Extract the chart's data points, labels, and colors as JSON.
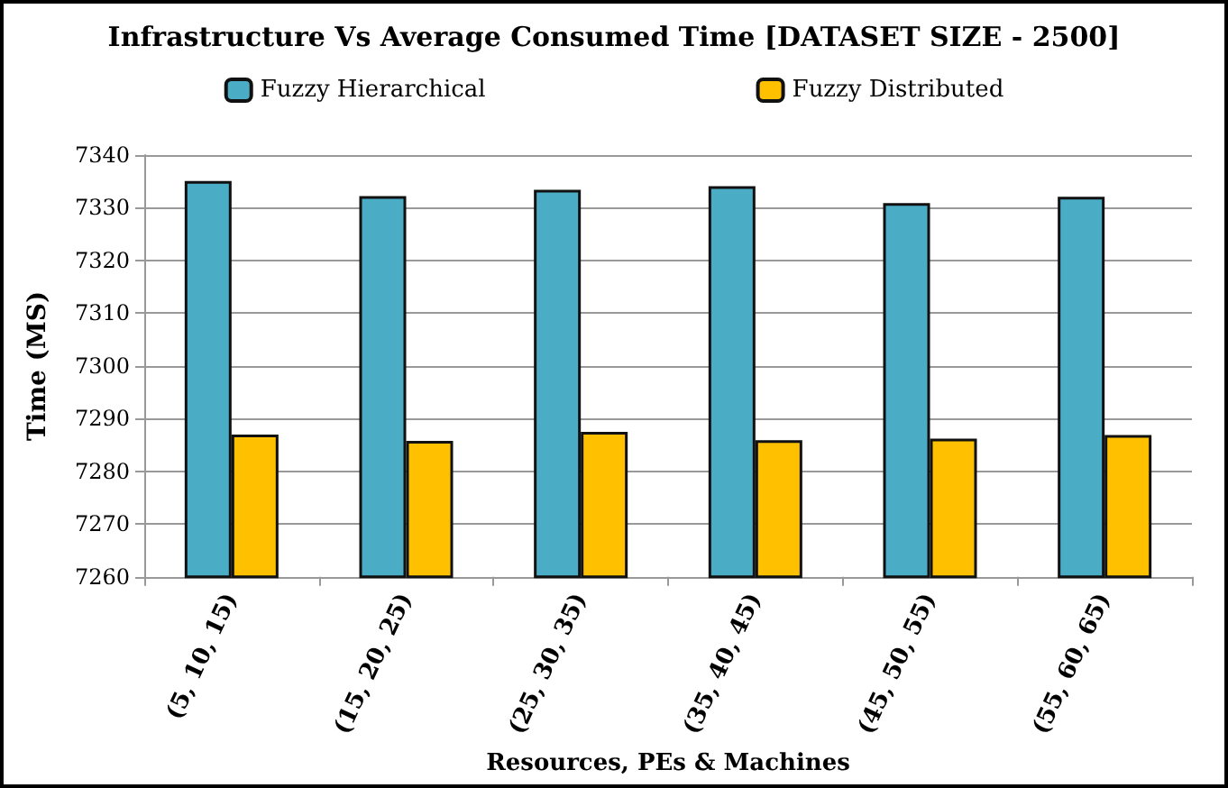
{
  "chart_data": {
    "type": "bar",
    "title": "Infrastructure Vs Average Consumed Time [DATASET SIZE - 2500]",
    "xlabel": "Resources, PEs & Machines",
    "ylabel": "Time (MS)",
    "categories": [
      "(5, 10, 15)",
      "(15, 20, 25)",
      "(25, 30, 35)",
      "(35, 40, 45)",
      "(45, 50, 55)",
      "(55, 60, 65)"
    ],
    "series": [
      {
        "name": "Fuzzy Hierarchical",
        "color": "#4bacc6",
        "values": [
          7335.1,
          7332.2,
          7333.4,
          7334.1,
          7330.9,
          7332.1
        ]
      },
      {
        "name": "Fuzzy Distributed",
        "color": "#ffc000",
        "values": [
          7287.0,
          7285.8,
          7287.5,
          7285.9,
          7286.2,
          7286.9
        ]
      }
    ],
    "ylim": [
      7260,
      7340
    ],
    "yticks": [
      7260,
      7270,
      7280,
      7290,
      7300,
      7310,
      7320,
      7330,
      7340
    ],
    "grid": "y",
    "legend": "top"
  }
}
